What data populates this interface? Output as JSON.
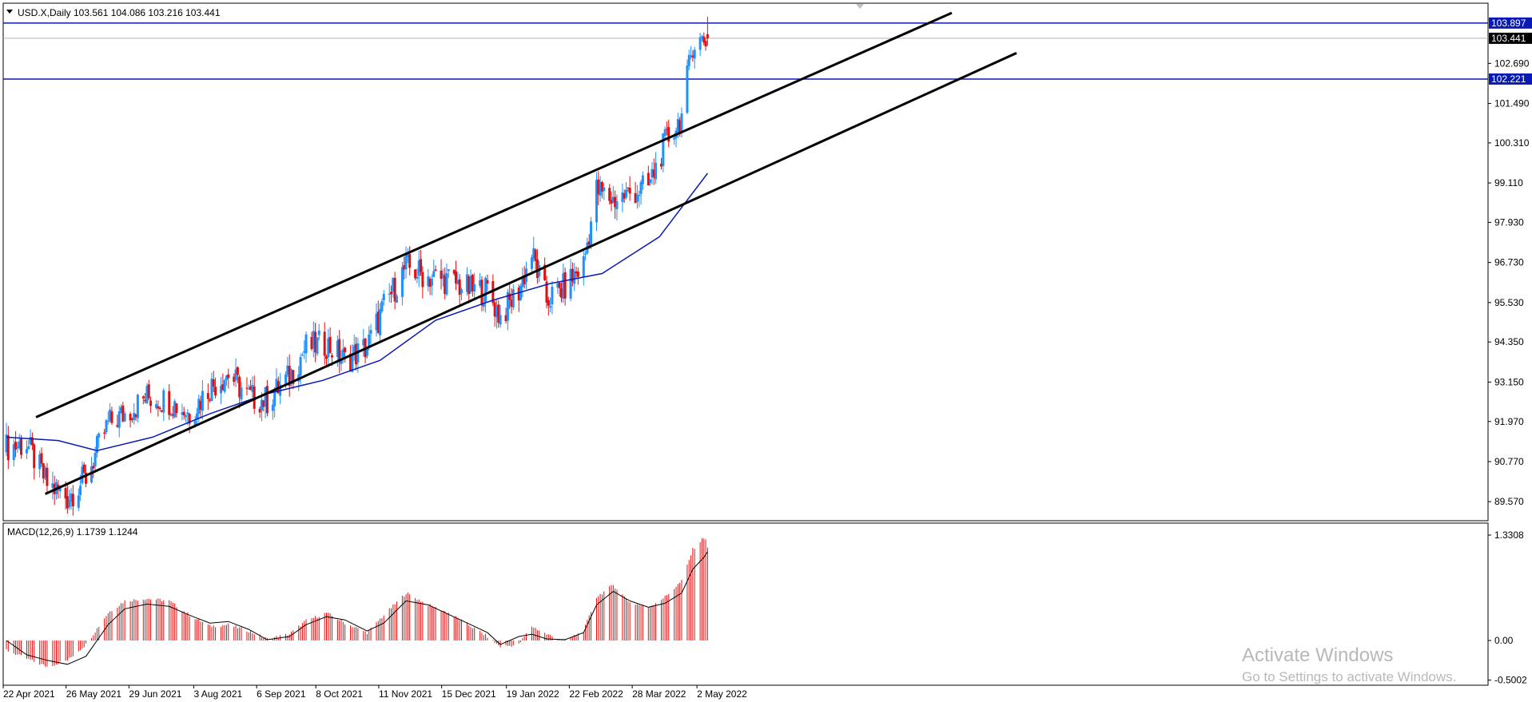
{
  "main_panel": {
    "symbol": "USD.X,Daily",
    "ohlc": "103.561 104.086 103.216 103.441",
    "price_ticks": [
      "89.570",
      "90.770",
      "91.970",
      "93.150",
      "94.350",
      "95.530",
      "96.730",
      "97.930",
      "99.110",
      "100.310",
      "101.490",
      "102.690"
    ],
    "level_labels": {
      "upper": "103.897",
      "current": "103.441",
      "lower": "102.221"
    }
  },
  "macd_panel": {
    "label": "MACD(12,26,9) 1.1739 1.1244",
    "ticks": [
      "1.3308",
      "0.00",
      "-0.5002"
    ]
  },
  "date_labels": [
    "22 Apr 2021",
    "26 May 2021",
    "29 Jun 2021",
    "3 Aug 2021",
    "6 Sep 2021",
    "8 Oct 2021",
    "11 Nov 2021",
    "15 Dec 2021",
    "19 Jan 2022",
    "22 Feb 2022",
    "28 Mar 2022",
    "2 May 2022"
  ],
  "watermark": {
    "line1": "Activate Windows",
    "line2": "Go to Settings to activate Windows."
  },
  "colors": {
    "bull": "#1e90ff",
    "bear": "#e01010",
    "ma": "#0a1ab4",
    "level": "#0a1ab4",
    "channel": "#000000",
    "hist": "#e01010"
  },
  "chart_data": [
    {
      "type": "candlestick",
      "symbol": "USD.X",
      "timeframe": "Daily",
      "ohlc_last": {
        "open": 103.561,
        "high": 104.086,
        "low": 103.216,
        "close": 103.441
      },
      "ylim": [
        89.0,
        104.3
      ],
      "horizontal_levels": [
        103.897,
        102.221
      ],
      "current_price": 103.441,
      "close_path": [
        [
          "2021-04-22",
          91.2
        ],
        [
          "2021-05-03",
          91.3
        ],
        [
          "2021-05-14",
          90.1
        ],
        [
          "2021-05-25",
          89.7
        ],
        [
          "2021-06-04",
          90.3
        ],
        [
          "2021-06-16",
          91.9
        ],
        [
          "2021-06-25",
          92.2
        ],
        [
          "2021-07-07",
          92.7
        ],
        [
          "2021-07-19",
          92.6
        ],
        [
          "2021-07-30",
          92.2
        ],
        [
          "2021-08-10",
          93.0
        ],
        [
          "2021-08-20",
          93.4
        ],
        [
          "2021-08-31",
          92.7
        ],
        [
          "2021-09-10",
          92.6
        ],
        [
          "2021-09-22",
          93.3
        ],
        [
          "2021-10-01",
          94.2
        ],
        [
          "2021-10-12",
          94.3
        ],
        [
          "2021-10-22",
          93.8
        ],
        [
          "2021-11-03",
          94.2
        ],
        [
          "2021-11-12",
          95.4
        ],
        [
          "2021-11-24",
          96.6
        ],
        [
          "2021-12-06",
          96.3
        ],
        [
          "2021-12-17",
          96.2
        ],
        [
          "2021-12-29",
          95.9
        ],
        [
          "2022-01-07",
          95.9
        ],
        [
          "2022-01-14",
          95.1
        ],
        [
          "2022-01-24",
          95.9
        ],
        [
          "2022-01-31",
          97.0
        ],
        [
          "2022-02-08",
          95.6
        ],
        [
          "2022-02-18",
          96.0
        ],
        [
          "2022-02-28",
          96.7
        ],
        [
          "2022-03-07",
          98.9
        ],
        [
          "2022-03-16",
          98.6
        ],
        [
          "2022-03-25",
          98.8
        ],
        [
          "2022-04-04",
          99.0
        ],
        [
          "2022-04-13",
          100.3
        ],
        [
          "2022-04-22",
          101.1
        ],
        [
          "2022-04-28",
          103.3
        ],
        [
          "2022-05-04",
          103.4
        ],
        [
          "2022-05-06",
          103.441
        ]
      ],
      "moving_average": [
        [
          "2021-04-22",
          91.5
        ],
        [
          "2021-05-20",
          91.4
        ],
        [
          "2021-06-10",
          91.1
        ],
        [
          "2021-07-10",
          91.5
        ],
        [
          "2021-08-10",
          92.2
        ],
        [
          "2021-09-10",
          92.8
        ],
        [
          "2021-10-10",
          93.2
        ],
        [
          "2021-11-10",
          93.8
        ],
        [
          "2021-12-10",
          95.0
        ],
        [
          "2022-01-10",
          95.6
        ],
        [
          "2022-02-10",
          96.1
        ],
        [
          "2022-03-10",
          96.4
        ],
        [
          "2022-04-10",
          97.5
        ],
        [
          "2022-05-06",
          99.4
        ]
      ],
      "channel_lines": [
        {
          "from": [
            "2021-05-08",
            92.1
          ],
          "to": [
            "2022-09-15",
            104.2
          ]
        },
        {
          "from": [
            "2021-05-13",
            89.8
          ],
          "to": [
            "2022-10-20",
            103.0
          ]
        }
      ]
    },
    {
      "type": "bar",
      "name": "MACD(12,26,9)",
      "macd": 1.1739,
      "signal": 1.1244,
      "ylim": [
        -0.5002,
        1.3308
      ],
      "histogram": [
        [
          "2021-04-22",
          -0.12
        ],
        [
          "2021-05-03",
          -0.23
        ],
        [
          "2021-05-14",
          -0.33
        ],
        [
          "2021-05-25",
          -0.25
        ],
        [
          "2021-06-04",
          -0.05
        ],
        [
          "2021-06-16",
          0.35
        ],
        [
          "2021-06-25",
          0.5
        ],
        [
          "2021-07-07",
          0.53
        ],
        [
          "2021-07-19",
          0.5
        ],
        [
          "2021-07-30",
          0.32
        ],
        [
          "2021-08-10",
          0.18
        ],
        [
          "2021-08-20",
          0.2
        ],
        [
          "2021-08-31",
          0.12
        ],
        [
          "2021-09-10",
          0.02
        ],
        [
          "2021-09-22",
          0.08
        ],
        [
          "2021-10-01",
          0.25
        ],
        [
          "2021-10-12",
          0.35
        ],
        [
          "2021-10-22",
          0.22
        ],
        [
          "2021-11-03",
          0.1
        ],
        [
          "2021-11-12",
          0.32
        ],
        [
          "2021-11-24",
          0.6
        ],
        [
          "2021-12-06",
          0.45
        ],
        [
          "2021-12-17",
          0.35
        ],
        [
          "2021-12-29",
          0.18
        ],
        [
          "2022-01-07",
          0.05
        ],
        [
          "2022-01-14",
          -0.08
        ],
        [
          "2022-01-24",
          -0.05
        ],
        [
          "2022-01-31",
          0.18
        ],
        [
          "2022-02-08",
          0.08
        ],
        [
          "2022-02-18",
          0.0
        ],
        [
          "2022-02-28",
          0.12
        ],
        [
          "2022-03-07",
          0.55
        ],
        [
          "2022-03-16",
          0.7
        ],
        [
          "2022-03-25",
          0.48
        ],
        [
          "2022-04-04",
          0.42
        ],
        [
          "2022-04-13",
          0.55
        ],
        [
          "2022-04-22",
          0.75
        ],
        [
          "2022-04-28",
          1.15
        ],
        [
          "2022-05-04",
          1.3
        ],
        [
          "2022-05-06",
          1.27
        ]
      ],
      "signal_line": [
        [
          "2021-04-22",
          0.0
        ],
        [
          "2021-05-03",
          -0.18
        ],
        [
          "2021-05-14",
          -0.25
        ],
        [
          "2021-05-25",
          -0.3
        ],
        [
          "2021-06-04",
          -0.2
        ],
        [
          "2021-06-16",
          0.2
        ],
        [
          "2021-06-25",
          0.4
        ],
        [
          "2021-07-07",
          0.46
        ],
        [
          "2021-07-19",
          0.43
        ],
        [
          "2021-07-30",
          0.32
        ],
        [
          "2021-08-10",
          0.22
        ],
        [
          "2021-08-20",
          0.24
        ],
        [
          "2021-08-31",
          0.14
        ],
        [
          "2021-09-10",
          0.01
        ],
        [
          "2021-09-22",
          0.05
        ],
        [
          "2021-10-01",
          0.2
        ],
        [
          "2021-10-12",
          0.3
        ],
        [
          "2021-10-22",
          0.26
        ],
        [
          "2021-11-03",
          0.12
        ],
        [
          "2021-11-12",
          0.22
        ],
        [
          "2021-11-24",
          0.5
        ],
        [
          "2021-12-06",
          0.45
        ],
        [
          "2021-12-17",
          0.33
        ],
        [
          "2021-12-29",
          0.2
        ],
        [
          "2022-01-07",
          0.1
        ],
        [
          "2022-01-14",
          -0.05
        ],
        [
          "2022-01-24",
          0.05
        ],
        [
          "2022-01-31",
          0.08
        ],
        [
          "2022-02-08",
          0.02
        ],
        [
          "2022-02-18",
          0.01
        ],
        [
          "2022-02-28",
          0.1
        ],
        [
          "2022-03-07",
          0.45
        ],
        [
          "2022-03-16",
          0.62
        ],
        [
          "2022-03-25",
          0.5
        ],
        [
          "2022-04-04",
          0.42
        ],
        [
          "2022-04-13",
          0.47
        ],
        [
          "2022-04-22",
          0.6
        ],
        [
          "2022-04-28",
          0.9
        ],
        [
          "2022-05-04",
          1.05
        ],
        [
          "2022-05-06",
          1.12
        ]
      ]
    }
  ]
}
